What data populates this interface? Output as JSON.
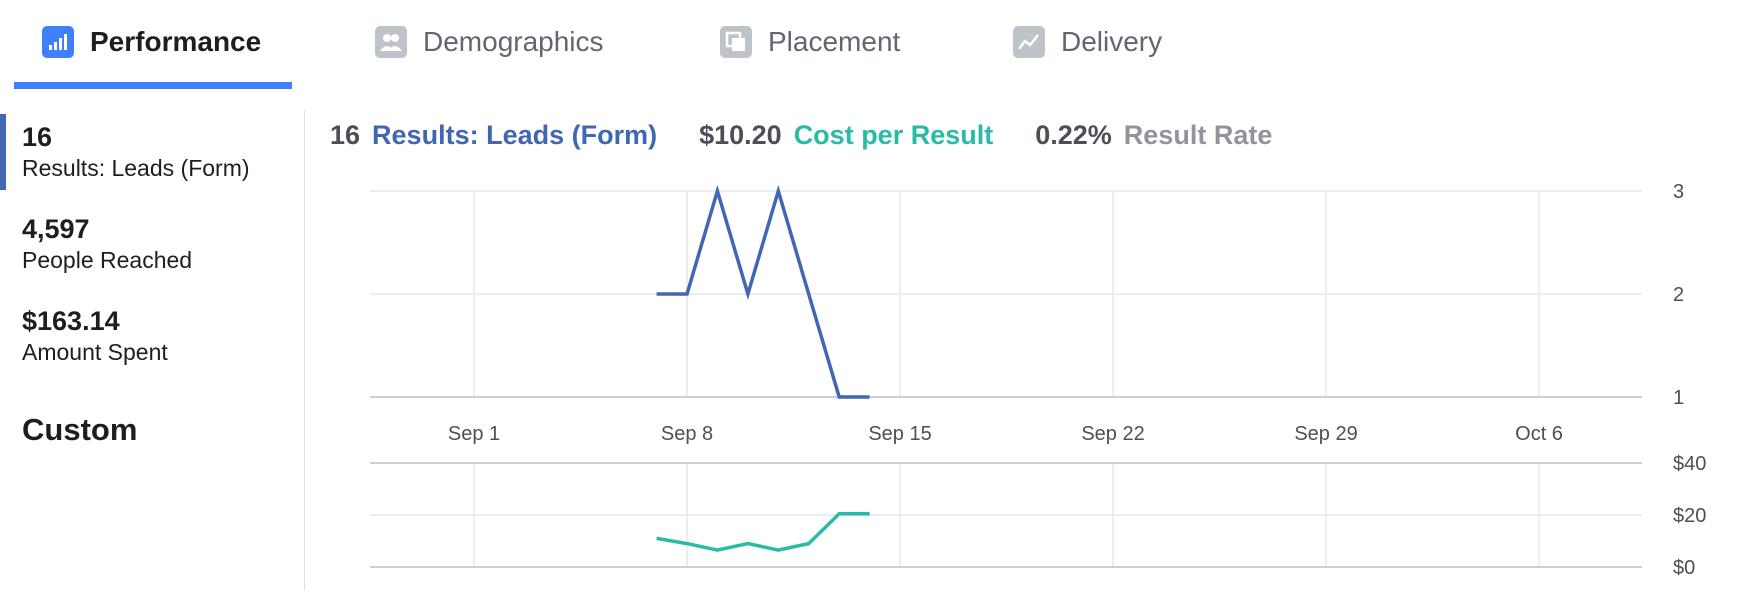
{
  "tabs": [
    {
      "label": "Performance",
      "active": true,
      "icon": "bar-chart-icon"
    },
    {
      "label": "Demographics",
      "active": false,
      "icon": "people-icon"
    },
    {
      "label": "Placement",
      "active": false,
      "icon": "placement-icon"
    },
    {
      "label": "Delivery",
      "active": false,
      "icon": "delivery-trend-icon"
    }
  ],
  "metrics": [
    {
      "value": "16",
      "label": "Results: Leads (Form)",
      "selected": true
    },
    {
      "value": "4,597",
      "label": "People Reached",
      "selected": false
    },
    {
      "value": "$163.14",
      "label": "Amount Spent",
      "selected": false
    }
  ],
  "custom_label": "Custom",
  "summary": {
    "results_value": "16",
    "results_label": "Results: Leads (Form)",
    "cost_value": "$10.20",
    "cost_label": "Cost per Result",
    "rate_value": "0.22%",
    "rate_label": "Result Rate"
  },
  "colors": {
    "accent": "#4080ff",
    "results": "#4267b2",
    "cost": "#2abba7",
    "rate": "#90949c"
  },
  "chart_data": [
    {
      "type": "line",
      "x_ticks": [
        "Sep 1",
        "Sep 8",
        "Sep 15",
        "Sep 22",
        "Sep 29",
        "Oct 6"
      ],
      "y_ticks": [
        "1",
        "2",
        "3"
      ],
      "ylim": [
        1,
        3
      ],
      "series": [
        {
          "x": [
            "Sep 7",
            "Sep 8",
            "Sep 9",
            "Sep 10",
            "Sep 11",
            "Sep 12",
            "Sep 13",
            "Sep 14"
          ],
          "values": [
            2,
            2,
            3,
            2,
            3,
            2,
            1,
            1
          ],
          "color": "#4267b2"
        }
      ]
    },
    {
      "type": "line",
      "y_ticks": [
        "$0",
        "$20",
        "$40"
      ],
      "ylim": [
        0,
        40
      ],
      "series": [
        {
          "x": [
            "Sep 7",
            "Sep 8",
            "Sep 9",
            "Sep 10",
            "Sep 11",
            "Sep 12",
            "Sep 13",
            "Sep 14"
          ],
          "values": [
            11,
            9,
            6.5,
            9,
            6.5,
            9,
            20.5,
            20.5
          ],
          "color": "#2abba7"
        }
      ]
    }
  ]
}
